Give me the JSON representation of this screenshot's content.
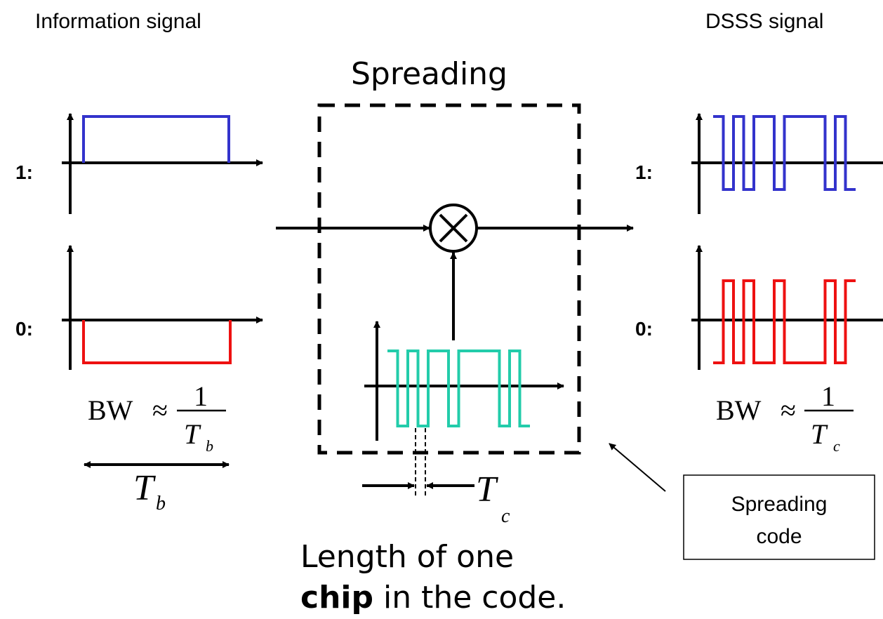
{
  "left_header": "Information signal",
  "right_header": "DSSS signal",
  "center_title": "Spreading",
  "bit_labels": {
    "one": "1:",
    "zero": "0:"
  },
  "bw_left": {
    "lhs": "BW",
    "approx": "≈",
    "numerator": "1",
    "denominator_T": "T",
    "denominator_sub": "b"
  },
  "bw_right": {
    "lhs": "BW",
    "approx": "≈",
    "numerator": "1",
    "denominator_T": "T",
    "denominator_sub": "c"
  },
  "tb_label": {
    "T": "T",
    "sub": "b"
  },
  "tc_label": {
    "T": "T",
    "sub": "c"
  },
  "callout": {
    "line1": "Spreading",
    "line2": "code"
  },
  "caption": {
    "line1": "Length of one",
    "bold": "chip",
    "rest": " in the code."
  },
  "colors": {
    "info_one": "#3333cc",
    "info_zero": "#ee1111",
    "code": "#22ccaa",
    "dsss_one": "#3333cc",
    "dsss_zero": "#ee1111",
    "axis": "#000000"
  },
  "code_chips": [
    1,
    -1,
    1,
    -1,
    1,
    1,
    -1,
    1,
    1,
    1,
    1,
    -1,
    1,
    -1
  ]
}
